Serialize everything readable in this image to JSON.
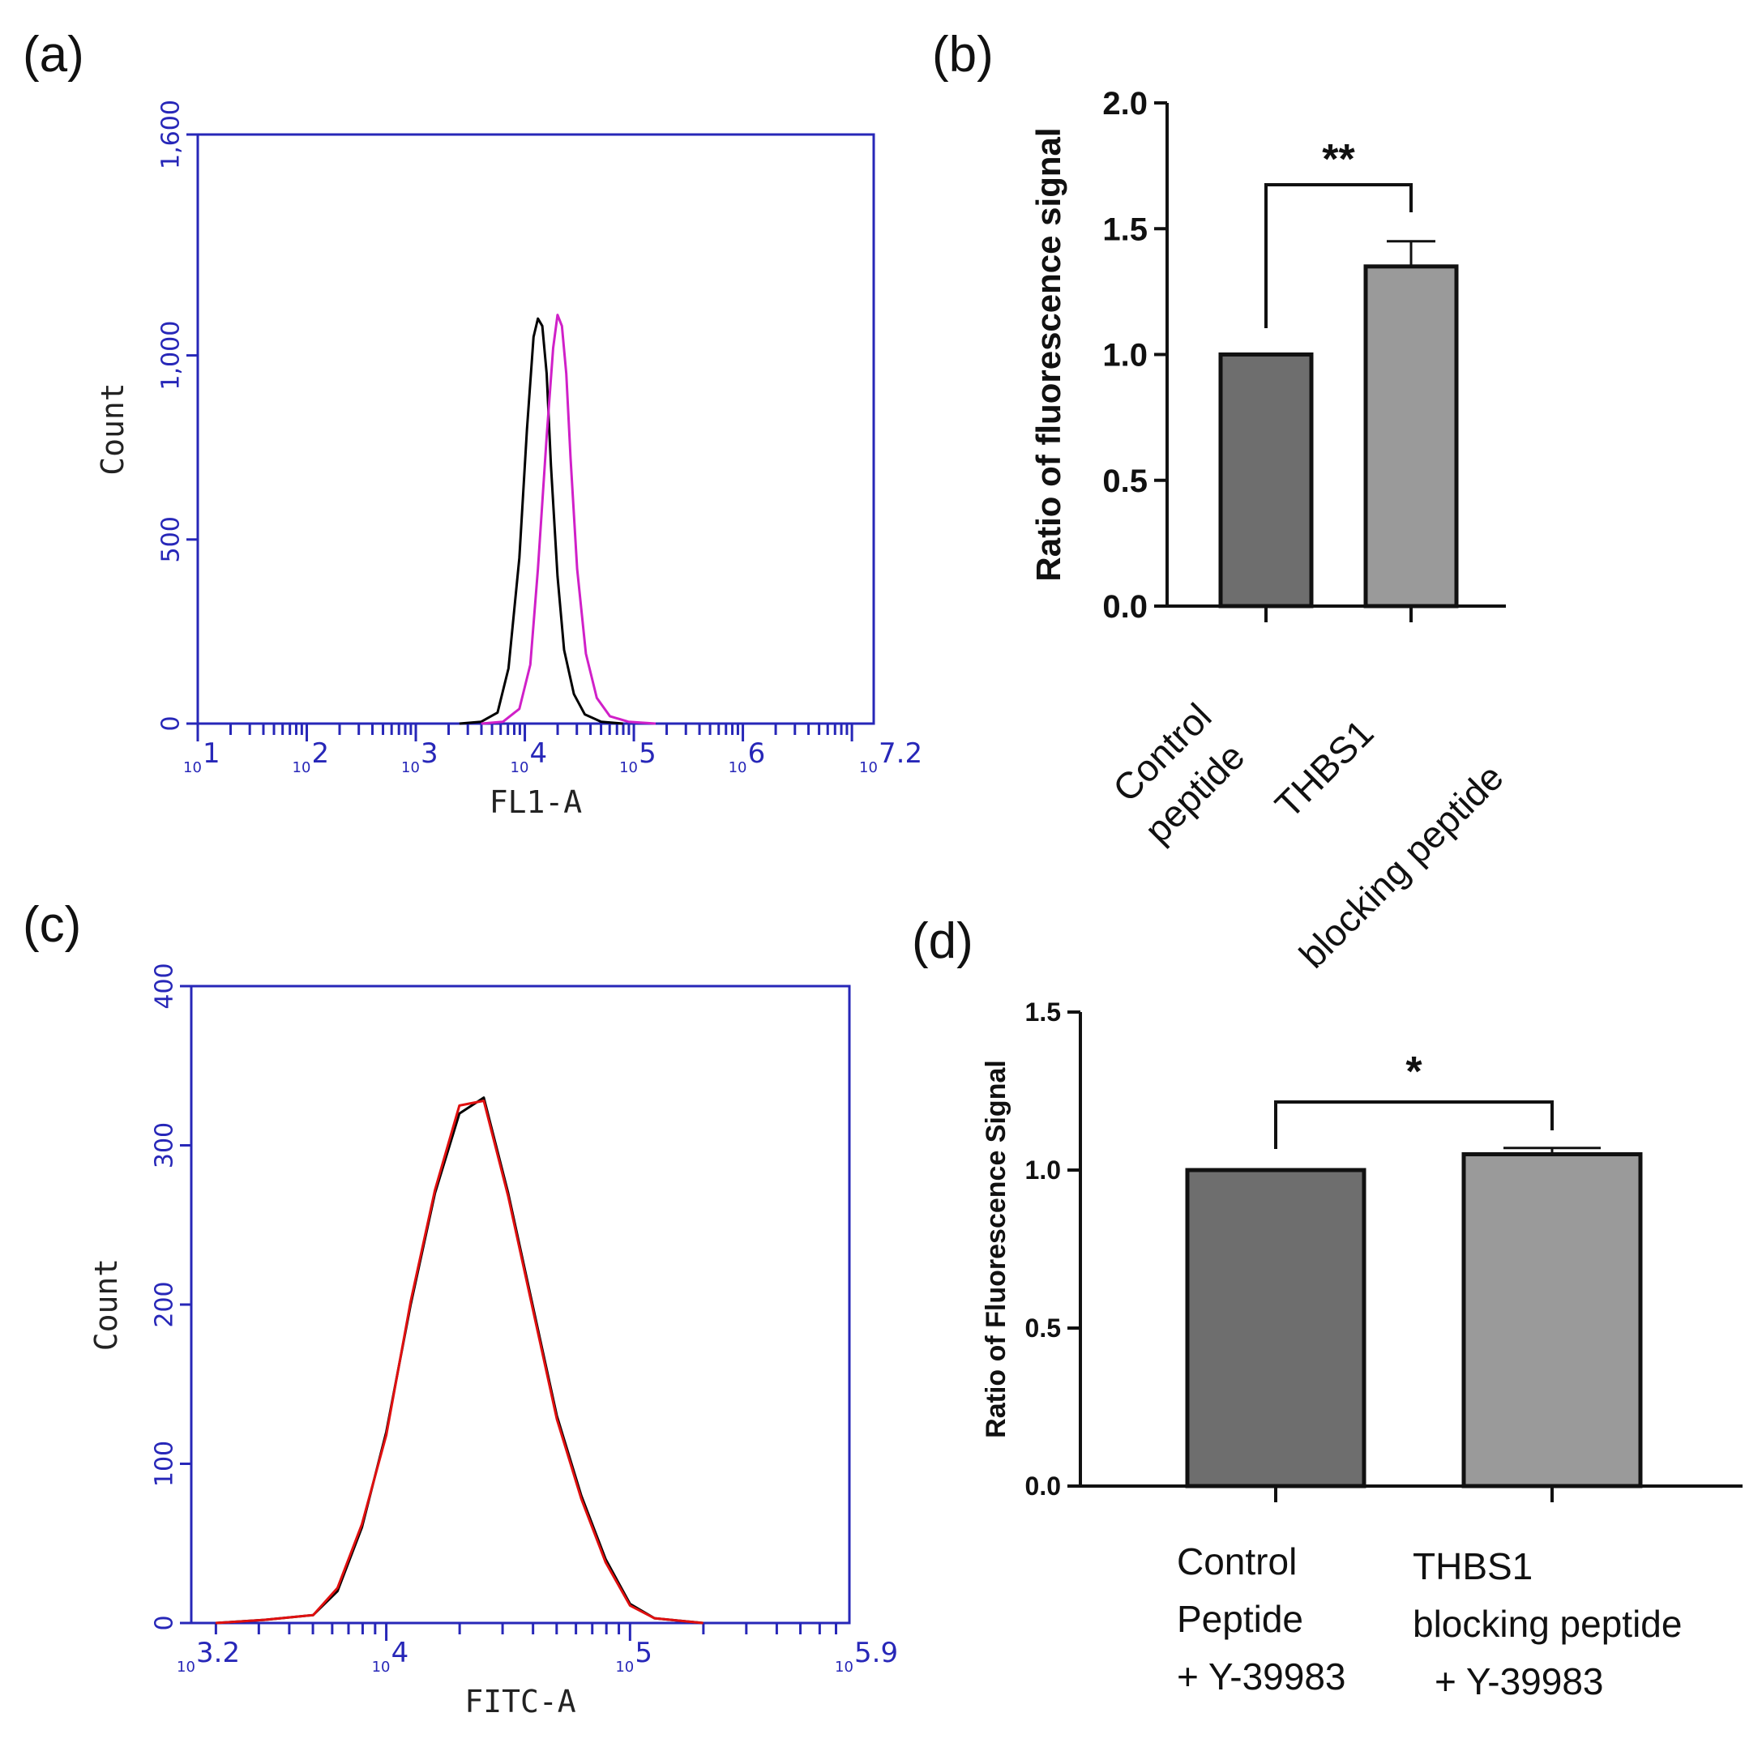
{
  "chart_data": [
    {
      "panel": "(a)",
      "type": "line",
      "xlabel": "FL1-A",
      "ylabel": "Count",
      "x_scale": "log10",
      "xlim": [
        1,
        7.2
      ],
      "ylim": [
        0,
        1600
      ],
      "x_tick_exponents": [
        "1",
        "2",
        "3",
        "4",
        "5",
        "6",
        "7.2"
      ],
      "x_tick_base": "10",
      "y_ticks": [
        "0",
        "500",
        "1,000",
        "1,600"
      ],
      "series": [
        {
          "color": "#000000",
          "x": [
            3.4,
            3.6,
            3.75,
            3.85,
            3.95,
            4.02,
            4.08,
            4.12,
            4.16,
            4.2,
            4.24,
            4.3,
            4.36,
            4.45,
            4.55,
            4.7,
            4.9
          ],
          "y": [
            0,
            5,
            30,
            150,
            450,
            800,
            1050,
            1100,
            1080,
            950,
            700,
            400,
            200,
            80,
            25,
            5,
            0
          ]
        },
        {
          "color": "#d020c8",
          "x": [
            3.6,
            3.8,
            3.95,
            4.05,
            4.12,
            4.2,
            4.26,
            4.3,
            4.34,
            4.38,
            4.42,
            4.48,
            4.56,
            4.66,
            4.78,
            4.95,
            5.2
          ],
          "y": [
            0,
            5,
            40,
            160,
            420,
            780,
            1020,
            1110,
            1080,
            950,
            720,
            420,
            190,
            70,
            20,
            5,
            0
          ]
        }
      ]
    },
    {
      "panel": "(b)",
      "type": "bar",
      "categories": [
        [
          "Control",
          "peptide"
        ],
        [
          "THBS1",
          "blocking peptide"
        ]
      ],
      "values": [
        1.0,
        1.35
      ],
      "errors": [
        0,
        0.1
      ],
      "colors": [
        "#6e6e6e",
        "#9a9a9a"
      ],
      "ylabel": "Ratio of fluorescence signal",
      "ylim": [
        0,
        2.0
      ],
      "y_ticks": [
        "0.0",
        "0.5",
        "1.0",
        "1.5",
        "2.0"
      ],
      "significance": "**"
    },
    {
      "panel": "(c)",
      "type": "line",
      "xlabel": "FITC-A",
      "ylabel": "Count",
      "x_scale": "log10",
      "xlim": [
        3.2,
        5.9
      ],
      "ylim": [
        0,
        400
      ],
      "x_tick_exponents": [
        "3.2",
        "4",
        "5",
        "5.9"
      ],
      "x_tick_base": "10",
      "y_ticks": [
        "0",
        "100",
        "200",
        "300",
        "400"
      ],
      "series": [
        {
          "color": "#000000",
          "x": [
            3.3,
            3.5,
            3.7,
            3.8,
            3.9,
            4.0,
            4.1,
            4.2,
            4.3,
            4.4,
            4.5,
            4.6,
            4.7,
            4.8,
            4.9,
            5.0,
            5.1,
            5.3
          ],
          "y": [
            0,
            2,
            5,
            20,
            60,
            120,
            200,
            270,
            320,
            330,
            270,
            200,
            130,
            80,
            40,
            12,
            3,
            0
          ]
        },
        {
          "color": "#e01010",
          "x": [
            3.3,
            3.5,
            3.7,
            3.8,
            3.9,
            4.0,
            4.1,
            4.2,
            4.3,
            4.4,
            4.5,
            4.6,
            4.7,
            4.8,
            4.9,
            5.0,
            5.1,
            5.3
          ],
          "y": [
            0,
            2,
            5,
            22,
            62,
            118,
            202,
            272,
            325,
            328,
            268,
            198,
            128,
            78,
            38,
            11,
            3,
            0
          ]
        }
      ]
    },
    {
      "panel": "(d)",
      "type": "bar",
      "categories": [
        [
          "Control",
          "Peptide",
          "+ Y-39983"
        ],
        [
          "THBS1",
          "blocking peptide",
          "+ Y-39983"
        ]
      ],
      "values": [
        1.0,
        1.05
      ],
      "errors": [
        0,
        0.02
      ],
      "colors": [
        "#6e6e6e",
        "#9a9a9a"
      ],
      "ylabel": "Ratio of Fluorescence Signal",
      "ylim": [
        0,
        1.5
      ],
      "y_ticks": [
        "0.0",
        "0.5",
        "1.0",
        "1.5"
      ],
      "significance": "*"
    }
  ]
}
